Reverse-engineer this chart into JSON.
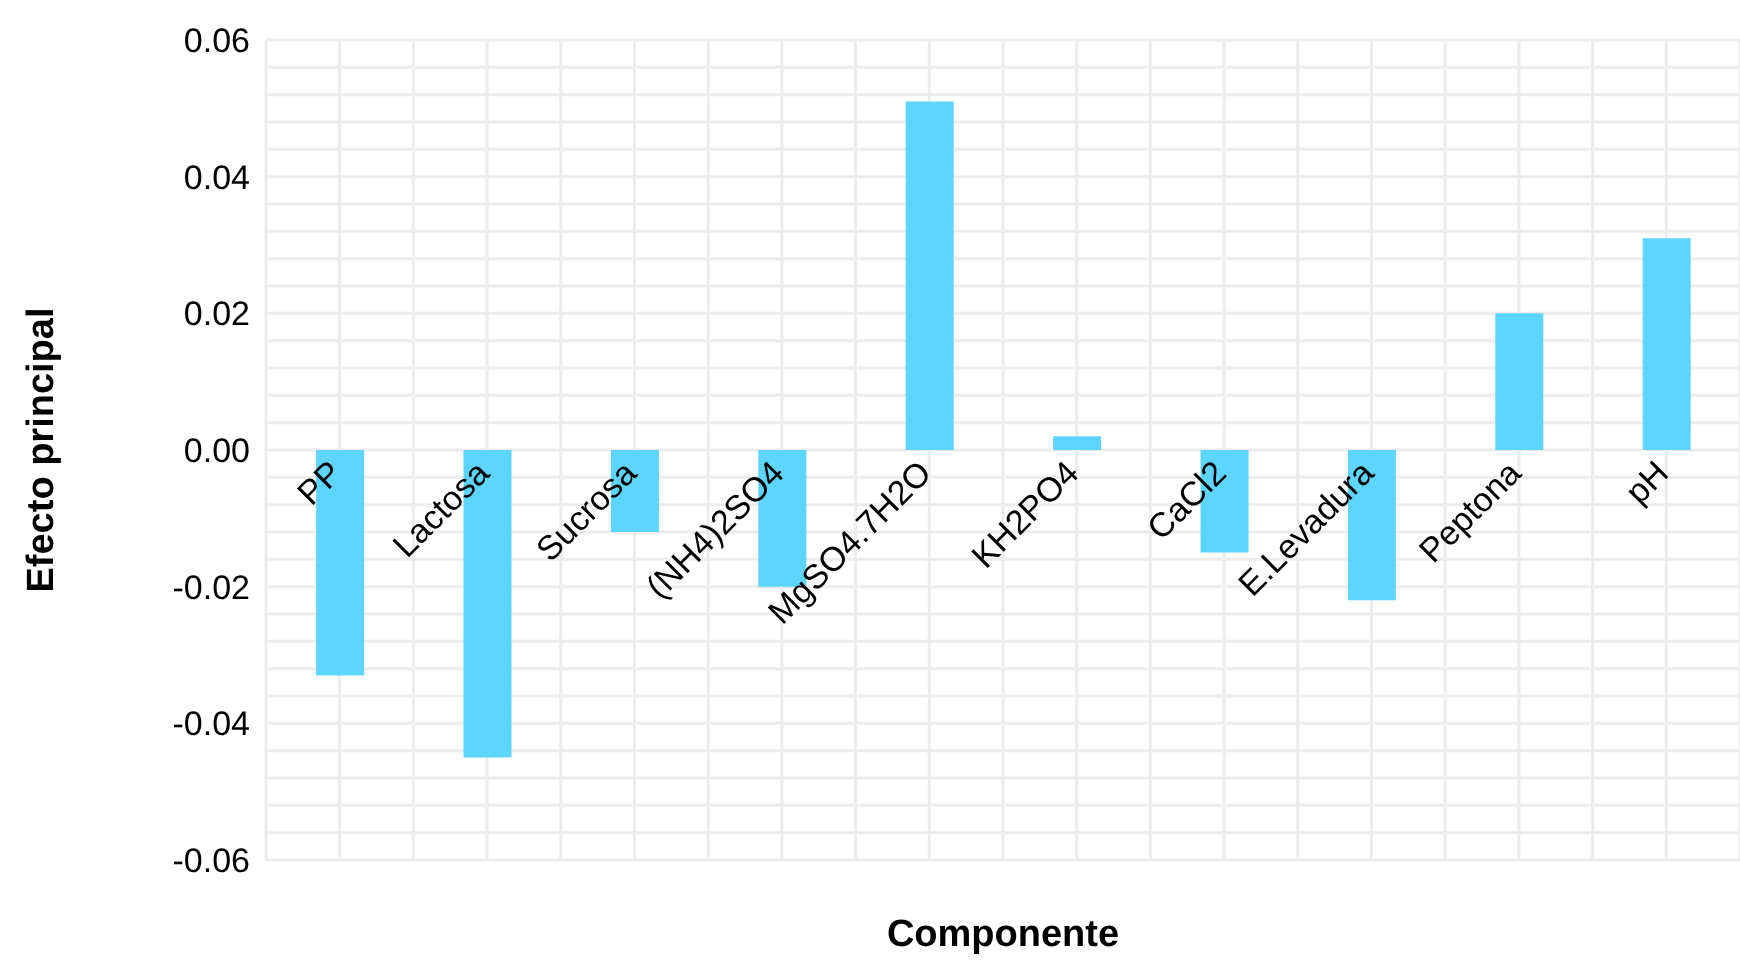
{
  "chart_data": {
    "type": "bar",
    "xlabel": "Componente",
    "ylabel": "Efecto principal",
    "categories": [
      "PP",
      "Lactosa",
      "Sucrosa",
      "(NH4)2SO4",
      "MgSO4.7H2O",
      "KH2PO4",
      "CaCl2",
      "E.Levadura",
      "Peptona",
      "pH"
    ],
    "values": [
      -0.033,
      -0.045,
      -0.012,
      -0.02,
      0.051,
      0.002,
      -0.015,
      -0.022,
      0.02,
      0.031
    ],
    "color": "#5dd5ff",
    "ylim": [
      -0.06,
      0.06
    ],
    "yticks": [
      {
        "value": -0.06,
        "label": "-0.06"
      },
      {
        "value": -0.056,
        "label": null
      },
      {
        "value": -0.052,
        "label": null
      },
      {
        "value": -0.048,
        "label": null
      },
      {
        "value": -0.044,
        "label": null
      },
      {
        "value": -0.04,
        "label": "-0.04"
      },
      {
        "value": -0.036,
        "label": null
      },
      {
        "value": -0.032,
        "label": null
      },
      {
        "value": -0.028,
        "label": null
      },
      {
        "value": -0.024,
        "label": null
      },
      {
        "value": -0.02,
        "label": "-0.02"
      },
      {
        "value": -0.016,
        "label": null
      },
      {
        "value": -0.012,
        "label": null
      },
      {
        "value": -0.008,
        "label": null
      },
      {
        "value": -0.004,
        "label": null
      },
      {
        "value": 0,
        "label": "0.00"
      },
      {
        "value": 0.004,
        "label": null
      },
      {
        "value": 0.008,
        "label": null
      },
      {
        "value": 0.012,
        "label": null
      },
      {
        "value": 0.016,
        "label": null
      },
      {
        "value": 0.02,
        "label": "0.02"
      },
      {
        "value": 0.024,
        "label": null
      },
      {
        "value": 0.028,
        "label": null
      },
      {
        "value": 0.032,
        "label": null
      },
      {
        "value": 0.036,
        "label": null
      },
      {
        "value": 0.04,
        "label": "0.04"
      },
      {
        "value": 0.044,
        "label": null
      },
      {
        "value": 0.048,
        "label": null
      },
      {
        "value": 0.052,
        "label": null
      },
      {
        "value": 0.056,
        "label": null
      },
      {
        "value": 0.06,
        "label": "0.06"
      }
    ],
    "grid": true
  }
}
